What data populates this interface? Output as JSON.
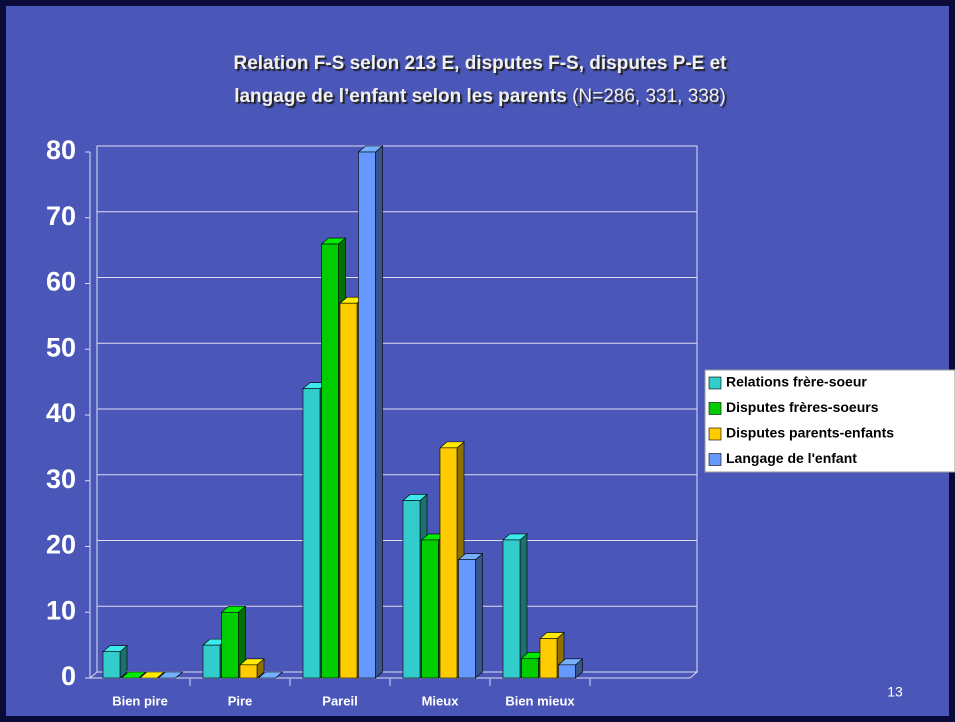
{
  "chart_data": {
    "type": "bar3d",
    "title_lines": [
      "Relation F-S selon 213 E, disputes F-S, disputes P-E et",
      "langage de l’enfant selon les parents"
    ],
    "title_note": "(N=286, 331, 338)",
    "categories": [
      "Bien pire",
      "Pire",
      "Pareil",
      "Mieux",
      "Bien mieux",
      null
    ],
    "series": [
      {
        "name": "Relations frère-soeur",
        "color": "#33cccc",
        "values": [
          4,
          5,
          44,
          27,
          21,
          null
        ]
      },
      {
        "name": "Disputes frères-soeurs",
        "color": "#00cc00",
        "values": [
          0,
          10,
          66,
          21,
          3,
          null
        ]
      },
      {
        "name": "Disputes parents-enfants",
        "color": "#ffcc00",
        "values": [
          0,
          2,
          57,
          35,
          6,
          null
        ]
      },
      {
        "name": "Langage de l'enfant",
        "color": "#6699ff",
        "values": [
          0,
          0,
          80,
          18,
          2,
          null
        ]
      }
    ],
    "ylim": [
      0,
      80
    ],
    "yticks": [
      0,
      10,
      20,
      30,
      40,
      50,
      60,
      70,
      80
    ],
    "grid": true,
    "legend": "right",
    "slide_number": "13"
  }
}
